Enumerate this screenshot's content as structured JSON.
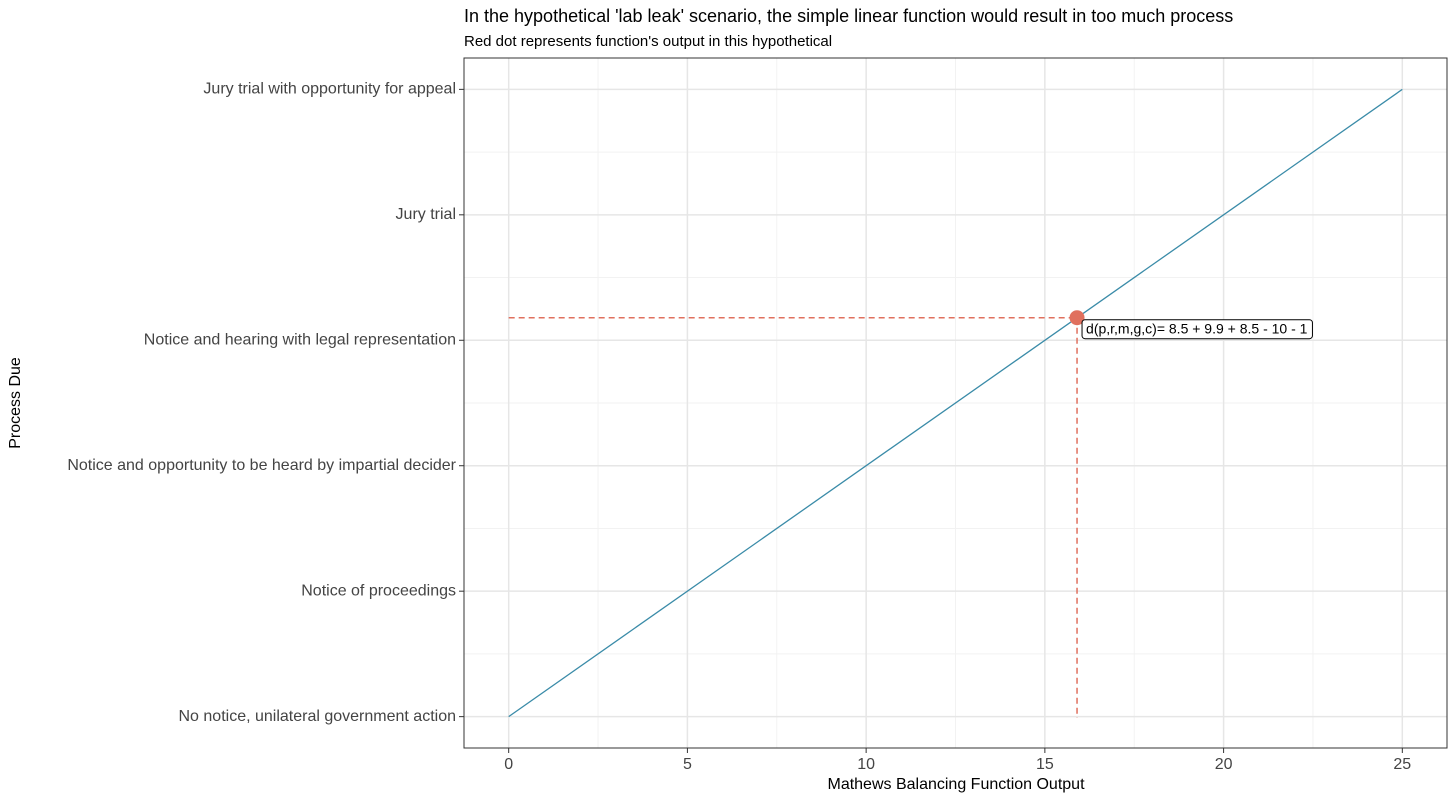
{
  "chart_data": {
    "type": "line",
    "title": "In the hypothetical 'lab leak' scenario, the simple linear function would result in too much process",
    "subtitle": "Red dot represents function's output in this hypothetical",
    "x_label": "Mathews Balancing Function Output",
    "y_label": "Process Due",
    "x": [
      0,
      25
    ],
    "series": [
      {
        "color": "#3a8ba8",
        "values": [
          1,
          6
        ]
      }
    ],
    "point": {
      "x": 15.9,
      "y": 4.18,
      "color": "#e0705e",
      "label": "d(p,r,m,g,c)= 8.5 + 9.9 + 8.5 - 10 - 1"
    },
    "xlim": [
      -1.25,
      26.25
    ],
    "ylim": [
      0.75,
      6.25
    ],
    "xticks": [
      0,
      5,
      10,
      15,
      20,
      25
    ],
    "yticks": [
      {
        "value": 1,
        "label": "No notice, unilateral government action"
      },
      {
        "value": 2,
        "label": "Notice of proceedings"
      },
      {
        "value": 3,
        "label": "Notice and opportunity to be heard by impartial decider"
      },
      {
        "value": 4,
        "label": "Notice and hearing with legal representation"
      },
      {
        "value": 5,
        "label": "Jury trial"
      },
      {
        "value": 6,
        "label": "Jury trial with opportunity for appeal"
      }
    ],
    "xminor": [
      2.5,
      7.5,
      12.5,
      17.5,
      22.5
    ],
    "yminor": [
      1.5,
      2.5,
      3.5,
      4.5,
      5.5
    ],
    "grid": true
  }
}
